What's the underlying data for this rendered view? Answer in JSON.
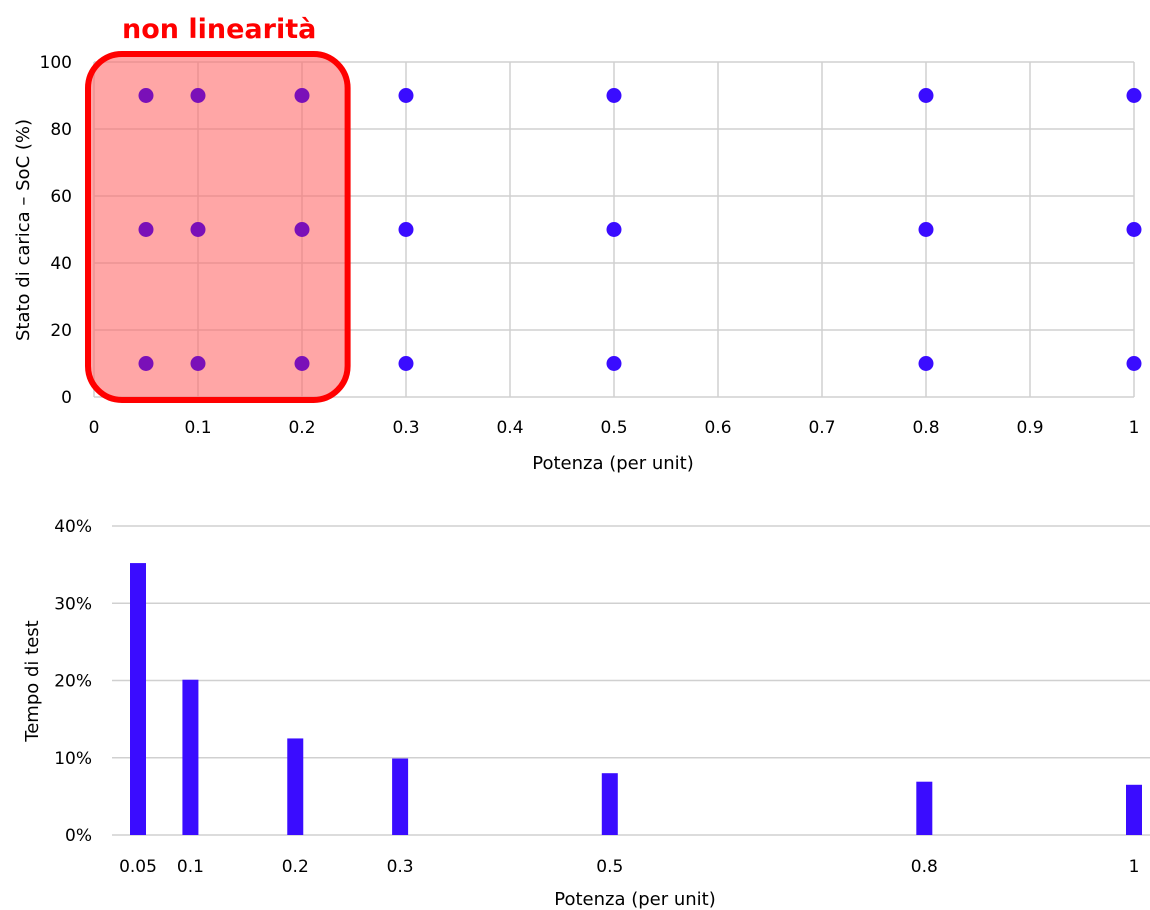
{
  "colors": {
    "series": "#3a0cff",
    "highlight_fill": "#ff6b6b",
    "highlight_stroke": "#ff0000",
    "grid": "#d0d0d0"
  },
  "chart_data": [
    {
      "type": "scatter",
      "xlabel": "Potenza (per unit)",
      "ylabel": "Stato di carica – SoC (%)",
      "xlim": [
        0,
        1
      ],
      "ylim": [
        0,
        100
      ],
      "xticks": [
        "0",
        "0.1",
        "0.2",
        "0.3",
        "0.4",
        "0.5",
        "0.6",
        "0.7",
        "0.8",
        "0.9",
        "1"
      ],
      "yticks": [
        "0",
        "20",
        "40",
        "60",
        "80",
        "100"
      ],
      "grid": true,
      "points": [
        {
          "x": 0.05,
          "y": 90
        },
        {
          "x": 0.1,
          "y": 90
        },
        {
          "x": 0.2,
          "y": 90
        },
        {
          "x": 0.3,
          "y": 90
        },
        {
          "x": 0.5,
          "y": 90
        },
        {
          "x": 0.8,
          "y": 90
        },
        {
          "x": 1,
          "y": 90
        },
        {
          "x": 0.05,
          "y": 50
        },
        {
          "x": 0.1,
          "y": 50
        },
        {
          "x": 0.2,
          "y": 50
        },
        {
          "x": 0.3,
          "y": 50
        },
        {
          "x": 0.5,
          "y": 50
        },
        {
          "x": 0.8,
          "y": 50
        },
        {
          "x": 1,
          "y": 50
        },
        {
          "x": 0.05,
          "y": 10
        },
        {
          "x": 0.1,
          "y": 10
        },
        {
          "x": 0.2,
          "y": 10
        },
        {
          "x": 0.3,
          "y": 10
        },
        {
          "x": 0.5,
          "y": 10
        },
        {
          "x": 0.8,
          "y": 10
        },
        {
          "x": 1,
          "y": 10
        }
      ],
      "annotation": {
        "text": "non linearità",
        "x_range": [
          0,
          0.24
        ],
        "y_range": [
          0,
          100
        ]
      }
    },
    {
      "type": "bar",
      "xlabel": "Potenza (per unit)",
      "ylabel": "Tempo di test",
      "x": [
        0.05,
        0.1,
        0.2,
        0.3,
        0.5,
        0.8,
        1
      ],
      "categories": [
        "0.05",
        "0.1",
        "0.2",
        "0.3",
        "0.5",
        "0.8",
        "1"
      ],
      "values": [
        35.2,
        20.1,
        12.5,
        9.9,
        8.0,
        6.9,
        6.5
      ],
      "ylim": [
        0,
        40
      ],
      "yticks": [
        "0%",
        "10%",
        "20%",
        "30%",
        "40%"
      ],
      "grid": true
    }
  ]
}
